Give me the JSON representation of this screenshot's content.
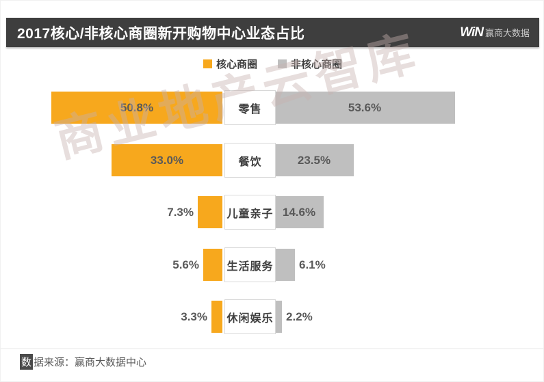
{
  "header": {
    "title": "2017核心/非核心商圈新开购物中心业态占比",
    "logo_win": "WiN",
    "logo_brand": "赢商大数据"
  },
  "legend": {
    "items": [
      {
        "label": "核心商圈",
        "color": "#f7a81d"
      },
      {
        "label": "非核心商圈",
        "color": "#bfbfbf"
      }
    ]
  },
  "chart_data": {
    "type": "bar",
    "subtype": "bidirectional-horizontal",
    "title": "2017核心/非核心商圈新开购物中心业态占比",
    "categories": [
      "零售",
      "餐饮",
      "儿童亲子",
      "生活服务",
      "休闲娱乐"
    ],
    "series": [
      {
        "name": "核心商圈",
        "color": "#f7a81d",
        "direction": "left",
        "values": [
          50.8,
          33.0,
          7.3,
          5.6,
          3.3
        ],
        "unit": "%"
      },
      {
        "name": "非核心商圈",
        "color": "#bfbfbf",
        "direction": "right",
        "values": [
          53.6,
          23.5,
          14.6,
          6.1,
          2.2
        ],
        "unit": "%"
      }
    ],
    "value_labels": {
      "left": [
        "50.8%",
        "33.0%",
        "7.3%",
        "5.6%",
        "3.3%"
      ],
      "right": [
        "53.6%",
        "23.5%",
        "14.6%",
        "6.1%",
        "2.2%"
      ]
    },
    "label_placement": {
      "left": [
        "inside",
        "inside",
        "outside",
        "outside",
        "outside"
      ],
      "right": [
        "inside",
        "inside",
        "inside",
        "outside",
        "outside"
      ]
    },
    "axis": "none",
    "grid": false,
    "legend_position": "top-center"
  },
  "watermark": "商业地产云智库",
  "footer": {
    "source_label": "数据来源：赢商大数据中心",
    "source_first_char": "数",
    "source_rest": "据来源：赢商大数据中心"
  }
}
